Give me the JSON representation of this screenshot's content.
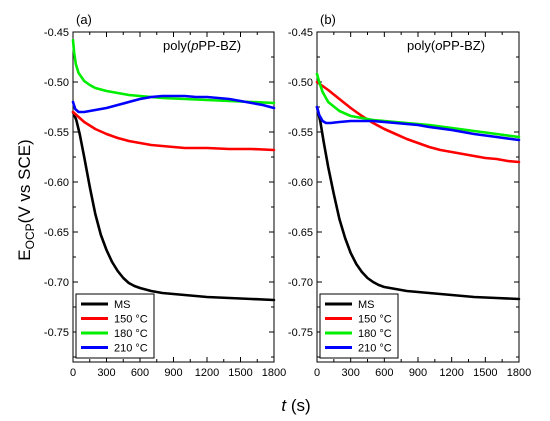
{
  "figure": {
    "ylabel_main": "E",
    "ylabel_sub": "OCP",
    "ylabel_rest": "(V vs SCE)",
    "xlabel_italic": "t",
    "xlabel_rest": " (s)"
  },
  "chart_data": [
    {
      "type": "line",
      "panel_label": "(a)",
      "title_prefix": "poly(",
      "title_italic": "p",
      "title_suffix": "PP-BZ)",
      "xlim": [
        0,
        1800
      ],
      "ylim": [
        -0.78,
        -0.45
      ],
      "xticks": [
        "0",
        "300",
        "600",
        "900",
        "1200",
        "1500",
        "1800"
      ],
      "yticks": [
        "-0.45",
        "-0.50",
        "-0.55",
        "-0.60",
        "-0.65",
        "-0.70",
        "-0.75"
      ],
      "legend": {
        "position": "bottom-left",
        "entries": [
          "MS",
          "150 °C",
          "180 °C",
          "210 °C"
        ]
      },
      "series": [
        {
          "name": "MS",
          "color": "#000000",
          "x": [
            0,
            30,
            60,
            100,
            150,
            200,
            250,
            300,
            350,
            400,
            450,
            500,
            550,
            600,
            700,
            800,
            900,
            1000,
            1200,
            1400,
            1600,
            1800
          ],
          "y": [
            -0.53,
            -0.538,
            -0.552,
            -0.575,
            -0.605,
            -0.632,
            -0.653,
            -0.668,
            -0.68,
            -0.689,
            -0.696,
            -0.701,
            -0.704,
            -0.706,
            -0.709,
            -0.711,
            -0.712,
            -0.713,
            -0.715,
            -0.716,
            -0.717,
            -0.718
          ]
        },
        {
          "name": "150 °C",
          "color": "#ff0000",
          "x": [
            0,
            50,
            100,
            200,
            300,
            400,
            500,
            600,
            700,
            800,
            900,
            1000,
            1200,
            1400,
            1600,
            1800
          ],
          "y": [
            -0.53,
            -0.535,
            -0.54,
            -0.547,
            -0.552,
            -0.556,
            -0.559,
            -0.561,
            -0.563,
            -0.564,
            -0.565,
            -0.566,
            -0.566,
            -0.567,
            -0.567,
            -0.568
          ]
        },
        {
          "name": "180 °C",
          "color": "#00ee00",
          "x": [
            0,
            10,
            25,
            50,
            100,
            150,
            200,
            300,
            400,
            500,
            600,
            700,
            800,
            1000,
            1200,
            1400,
            1600,
            1800
          ],
          "y": [
            -0.458,
            -0.47,
            -0.482,
            -0.491,
            -0.499,
            -0.503,
            -0.506,
            -0.509,
            -0.511,
            -0.513,
            -0.514,
            -0.515,
            -0.516,
            -0.517,
            -0.518,
            -0.519,
            -0.52,
            -0.521
          ]
        },
        {
          "name": "210 °C",
          "color": "#0000ff",
          "x": [
            0,
            20,
            50,
            100,
            200,
            300,
            400,
            500,
            600,
            700,
            800,
            900,
            1000,
            1100,
            1200,
            1300,
            1400,
            1500,
            1600,
            1700,
            1800
          ],
          "y": [
            -0.52,
            -0.527,
            -0.53,
            -0.53,
            -0.528,
            -0.526,
            -0.523,
            -0.52,
            -0.517,
            -0.515,
            -0.514,
            -0.514,
            -0.514,
            -0.515,
            -0.515,
            -0.516,
            -0.517,
            -0.519,
            -0.521,
            -0.523,
            -0.526
          ]
        }
      ]
    },
    {
      "type": "line",
      "panel_label": "(b)",
      "title_prefix": "poly(",
      "title_italic": "o",
      "title_suffix": "PP-BZ)",
      "xlim": [
        0,
        1800
      ],
      "ylim": [
        -0.78,
        -0.45
      ],
      "xticks": [
        "0",
        "300",
        "600",
        "900",
        "1200",
        "1500",
        "1800"
      ],
      "yticks": [
        "-0.45",
        "-0.50",
        "-0.55",
        "-0.60",
        "-0.65",
        "-0.70",
        "-0.75"
      ],
      "legend": {
        "position": "bottom-left",
        "entries": [
          "MS",
          "150 °C",
          "180 °C",
          "210 °C"
        ]
      },
      "series": [
        {
          "name": "MS",
          "color": "#000000",
          "x": [
            0,
            30,
            60,
            100,
            150,
            200,
            250,
            300,
            350,
            400,
            450,
            500,
            550,
            600,
            700,
            800,
            900,
            1000,
            1200,
            1400,
            1600,
            1800
          ],
          "y": [
            -0.525,
            -0.54,
            -0.56,
            -0.585,
            -0.612,
            -0.637,
            -0.656,
            -0.671,
            -0.682,
            -0.69,
            -0.696,
            -0.7,
            -0.703,
            -0.705,
            -0.707,
            -0.709,
            -0.71,
            -0.711,
            -0.713,
            -0.715,
            -0.716,
            -0.717
          ]
        },
        {
          "name": "150 °C",
          "color": "#ff0000",
          "x": [
            0,
            100,
            200,
            300,
            400,
            500,
            600,
            700,
            800,
            900,
            1000,
            1100,
            1200,
            1300,
            1400,
            1500,
            1600,
            1700,
            1800
          ],
          "y": [
            -0.5,
            -0.508,
            -0.517,
            -0.526,
            -0.534,
            -0.541,
            -0.547,
            -0.552,
            -0.557,
            -0.561,
            -0.565,
            -0.568,
            -0.57,
            -0.572,
            -0.574,
            -0.576,
            -0.577,
            -0.579,
            -0.58
          ]
        },
        {
          "name": "180 °C",
          "color": "#00ee00",
          "x": [
            0,
            20,
            50,
            100,
            200,
            300,
            400,
            500,
            600,
            700,
            800,
            900,
            1000,
            1200,
            1400,
            1600,
            1800
          ],
          "y": [
            -0.492,
            -0.5,
            -0.51,
            -0.52,
            -0.529,
            -0.534,
            -0.536,
            -0.538,
            -0.539,
            -0.54,
            -0.541,
            -0.542,
            -0.543,
            -0.546,
            -0.549,
            -0.552,
            -0.555
          ]
        },
        {
          "name": "210 °C",
          "color": "#0000ff",
          "x": [
            0,
            20,
            50,
            80,
            120,
            200,
            300,
            400,
            500,
            600,
            700,
            800,
            900,
            1000,
            1200,
            1400,
            1600,
            1800
          ],
          "y": [
            -0.525,
            -0.533,
            -0.539,
            -0.541,
            -0.541,
            -0.54,
            -0.539,
            -0.539,
            -0.539,
            -0.54,
            -0.541,
            -0.542,
            -0.543,
            -0.545,
            -0.548,
            -0.552,
            -0.555,
            -0.558
          ]
        }
      ]
    }
  ]
}
